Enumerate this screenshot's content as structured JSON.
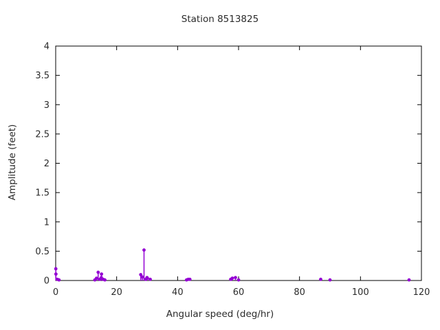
{
  "chart_data": {
    "type": "scatter",
    "style": "impulses+points",
    "title": "Station 8513825",
    "xlabel": "Angular speed (deg/hr)",
    "ylabel": "Amplitude (feet)",
    "xlim": [
      0,
      120
    ],
    "ylim": [
      0,
      4
    ],
    "x_ticks": [
      0,
      20,
      40,
      60,
      80,
      100,
      120
    ],
    "y_ticks": [
      0,
      0.5,
      1,
      1.5,
      2,
      2.5,
      3,
      3.5,
      4
    ],
    "grid": false,
    "legend": "none",
    "point_color": "#9400d3",
    "axis_color": "#000000",
    "text_color": "#2b2b2b",
    "points": [
      [
        0.04,
        0.2
      ],
      [
        0.08,
        0.11
      ],
      [
        0.54,
        0.02
      ],
      [
        1.1,
        0.01
      ],
      [
        12.85,
        0.01
      ],
      [
        13.4,
        0.04
      ],
      [
        13.94,
        0.14
      ],
      [
        14.49,
        0.02
      ],
      [
        14.96,
        0.05
      ],
      [
        15.04,
        0.11
      ],
      [
        15.58,
        0.02
      ],
      [
        16.14,
        0.01
      ],
      [
        27.9,
        0.1
      ],
      [
        28.44,
        0.06
      ],
      [
        28.98,
        0.52
      ],
      [
        29.53,
        0.02
      ],
      [
        29.96,
        0.05
      ],
      [
        30.08,
        0.04
      ],
      [
        31.02,
        0.02
      ],
      [
        42.93,
        0.01
      ],
      [
        43.48,
        0.02
      ],
      [
        44.03,
        0.02
      ],
      [
        57.42,
        0.02
      ],
      [
        57.97,
        0.04
      ],
      [
        58.98,
        0.05
      ],
      [
        60.0,
        0.01
      ],
      [
        86.95,
        0.02
      ],
      [
        90.0,
        0.01
      ],
      [
        115.94,
        0.01
      ]
    ]
  }
}
